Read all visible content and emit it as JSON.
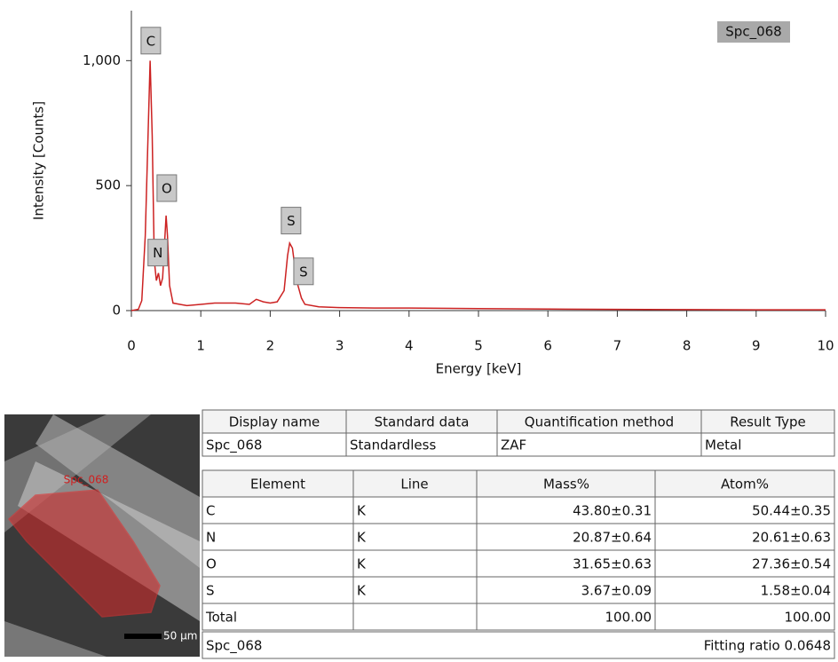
{
  "chart_data": {
    "type": "line",
    "x_label": "Energy [keV]",
    "y_label": "Intensity [Counts]",
    "spectrum_label": "Spc_068",
    "x": [
      0,
      0.1,
      0.15,
      0.2,
      0.25,
      0.27,
      0.3,
      0.33,
      0.36,
      0.39,
      0.42,
      0.45,
      0.5,
      0.52,
      0.55,
      0.6,
      0.7,
      0.8,
      1.0,
      1.2,
      1.5,
      1.7,
      1.8,
      1.9,
      2.0,
      2.1,
      2.2,
      2.25,
      2.28,
      2.32,
      2.38,
      2.45,
      2.5,
      2.7,
      3.0,
      3.5,
      4,
      5,
      6,
      7,
      8,
      9,
      10
    ],
    "series": [
      {
        "name": "Spc_068",
        "color": "#cc2222",
        "values": [
          0,
          5,
          40,
          300,
          800,
          1000,
          700,
          200,
          120,
          150,
          100,
          130,
          380,
          300,
          100,
          30,
          25,
          20,
          25,
          30,
          30,
          25,
          45,
          35,
          30,
          35,
          80,
          220,
          270,
          250,
          120,
          50,
          25,
          15,
          12,
          10,
          10,
          8,
          6,
          5,
          4,
          3,
          3
        ]
      }
    ],
    "annotations": [
      {
        "text": "C",
        "x": 0.28,
        "y": 1080
      },
      {
        "text": "N",
        "x": 0.38,
        "y": 232
      },
      {
        "text": "O",
        "x": 0.51,
        "y": 490
      },
      {
        "text": "S",
        "x": 2.3,
        "y": 360
      },
      {
        "text": "S",
        "x": 2.48,
        "y": 157
      }
    ],
    "xlim": [
      0,
      10
    ],
    "ylim": [
      0,
      1200
    ],
    "xticks": [
      0,
      1,
      2,
      3,
      4,
      5,
      6,
      7,
      8,
      9,
      10
    ],
    "yticks": [
      0,
      500,
      {
        "value": 1000,
        "label": "1,000"
      }
    ]
  },
  "image": {
    "region_label": "Spc_068",
    "scale_bar": "50 μm"
  },
  "info_table": {
    "headers": [
      "Display name",
      "Standard data",
      "Quantification method",
      "Result Type"
    ],
    "rows": [
      [
        "Spc_068",
        "Standardless",
        "ZAF",
        "Metal"
      ]
    ]
  },
  "result_table": {
    "headers": [
      "Element",
      "Line",
      "Mass%",
      "Atom%"
    ],
    "rows": [
      [
        "C",
        "K",
        "43.80±0.31",
        "50.44±0.35"
      ],
      [
        "N",
        "K",
        "20.87±0.64",
        "20.61±0.63"
      ],
      [
        "O",
        "K",
        "31.65±0.63",
        "27.36±0.54"
      ],
      [
        "S",
        "K",
        "3.67±0.09",
        "1.58±0.04"
      ]
    ],
    "total": {
      "label": "Total",
      "mass": "100.00",
      "atom": "100.00"
    },
    "footer": {
      "name": "Spc_068",
      "fitting": "Fitting ratio 0.0648"
    }
  }
}
